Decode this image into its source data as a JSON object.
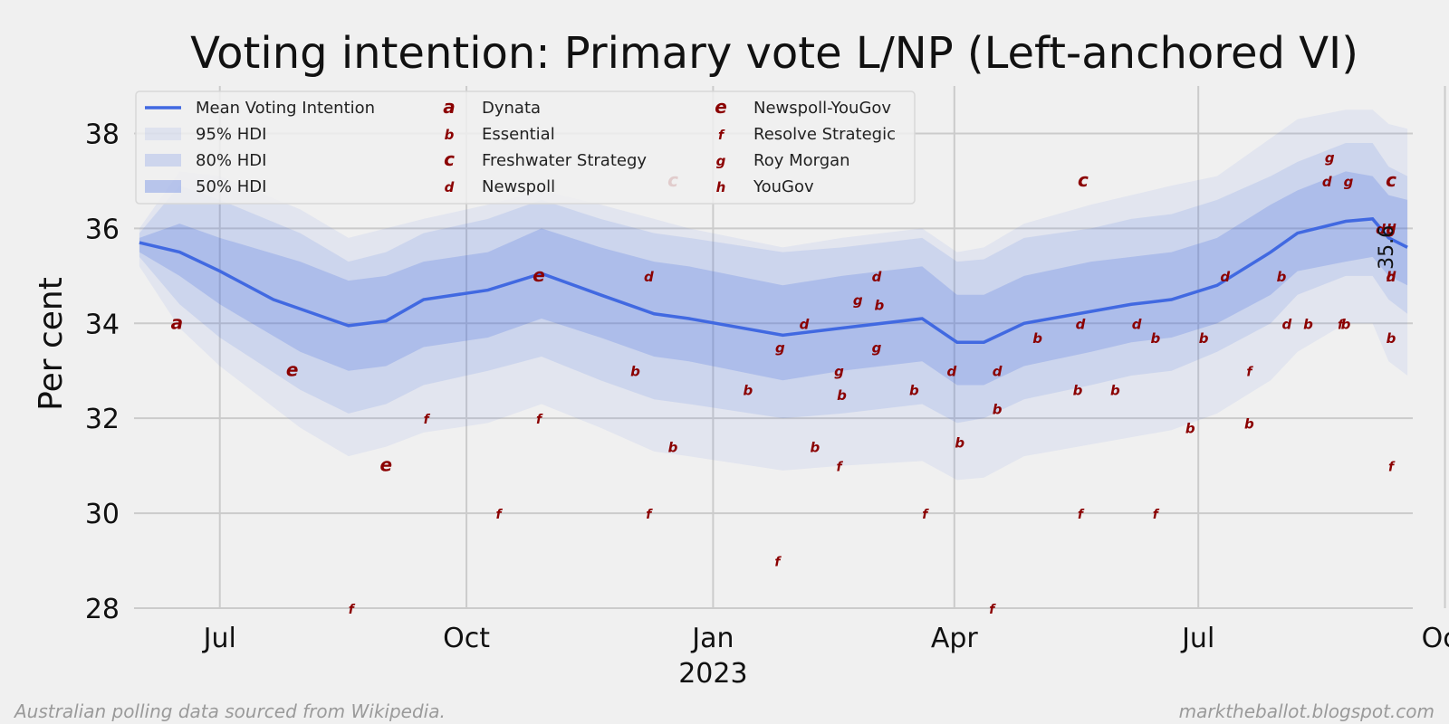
{
  "footer": {
    "left": "Australian polling data sourced from Wikipedia.",
    "right": "marktheballot.blogspot.com"
  },
  "chart_data": {
    "type": "line",
    "title": "Voting intention: Primary vote L/NP (Left-anchored VI)",
    "xlabel": "",
    "ylabel": "Per cent",
    "ylim": [
      28,
      39
    ],
    "xlim_days": [
      -32,
      445
    ],
    "x_unit": "days since 2022-07-01",
    "yticks": [
      28,
      30,
      32,
      34,
      36,
      38
    ],
    "xticks": [
      {
        "day": 0,
        "label": "Jul"
      },
      {
        "day": 92,
        "label": "Oct"
      },
      {
        "day": 184,
        "label": "Jan"
      },
      {
        "day": 274,
        "label": "Apr"
      },
      {
        "day": 365,
        "label": "Jul"
      },
      {
        "day": 457,
        "label": "Oct"
      }
    ],
    "year_label": {
      "day": 184,
      "label": "2023"
    },
    "end_label": "35.6",
    "legend": {
      "placement": "upper-left",
      "entries": [
        {
          "kind": "line",
          "label": "Mean Voting Intention"
        },
        {
          "kind": "band",
          "label": "95% HDI"
        },
        {
          "kind": "band",
          "label": "80% HDI"
        },
        {
          "kind": "band",
          "label": "50% HDI"
        },
        {
          "kind": "marker",
          "marker": "a",
          "label": "Dynata"
        },
        {
          "kind": "marker",
          "marker": "b",
          "label": "Essential"
        },
        {
          "kind": "marker",
          "marker": "c",
          "label": "Freshwater Strategy"
        },
        {
          "kind": "marker",
          "marker": "d",
          "label": "Newspoll"
        },
        {
          "kind": "marker",
          "marker": "e",
          "label": "Newspoll-YouGov"
        },
        {
          "kind": "marker",
          "marker": "f",
          "label": "Resolve Strategic"
        },
        {
          "kind": "marker",
          "marker": "g",
          "label": "Roy Morgan"
        },
        {
          "kind": "marker",
          "marker": "h",
          "label": "YouGov"
        }
      ]
    },
    "series": [
      {
        "name": "Mean Voting Intention",
        "color": "#4169e1",
        "x": [
          -40,
          -15,
          0,
          20,
          48,
          62,
          76,
          100,
          120,
          142,
          162,
          175,
          210,
          232,
          262,
          275,
          285,
          300,
          325,
          340,
          355,
          372,
          392,
          402,
          420,
          430,
          436,
          445,
          457,
          475
        ],
        "y": [
          35.7,
          35.5,
          35.1,
          34.5,
          33.95,
          34.05,
          34.5,
          34.7,
          35.05,
          34.6,
          34.2,
          34.1,
          33.75,
          33.9,
          34.1,
          33.6,
          33.6,
          34.0,
          34.25,
          34.4,
          34.5,
          34.8,
          35.5,
          35.9,
          36.15,
          36.2,
          35.8,
          35.6,
          35.6,
          35.6
        ]
      }
    ],
    "bands": [
      {
        "name": "95% HDI",
        "color": "#4169e1",
        "opacity": 0.08,
        "x": [
          -40,
          -15,
          0,
          30,
          48,
          62,
          76,
          100,
          120,
          142,
          162,
          175,
          210,
          232,
          262,
          275,
          285,
          300,
          325,
          340,
          355,
          372,
          392,
          402,
          420,
          430,
          436,
          445,
          457,
          475
        ],
        "lower": [
          35.2,
          33.9,
          33.1,
          31.8,
          31.2,
          31.4,
          31.7,
          31.9,
          32.3,
          31.8,
          31.3,
          31.2,
          30.9,
          31.0,
          31.1,
          30.7,
          30.75,
          31.2,
          31.45,
          31.6,
          31.75,
          32.1,
          32.8,
          33.4,
          34.0,
          34.0,
          33.2,
          32.9,
          32.8,
          32.6
        ],
        "upper": [
          36.0,
          37.2,
          37.1,
          36.4,
          35.8,
          36.0,
          36.2,
          36.5,
          36.8,
          36.5,
          36.2,
          36.0,
          35.6,
          35.8,
          36.0,
          35.5,
          35.6,
          36.1,
          36.5,
          36.7,
          36.9,
          37.1,
          37.9,
          38.3,
          38.5,
          38.5,
          38.2,
          38.1,
          38.2,
          38.6
        ]
      },
      {
        "name": "80% HDI",
        "color": "#4169e1",
        "opacity": 0.13,
        "x": [
          -40,
          -15,
          0,
          30,
          48,
          62,
          76,
          100,
          120,
          142,
          162,
          175,
          210,
          232,
          262,
          275,
          285,
          300,
          325,
          340,
          355,
          372,
          392,
          402,
          420,
          430,
          436,
          445,
          457,
          475
        ],
        "lower": [
          35.4,
          34.4,
          33.7,
          32.6,
          32.1,
          32.3,
          32.7,
          33.0,
          33.3,
          32.8,
          32.4,
          32.3,
          32.0,
          32.1,
          32.3,
          31.9,
          32.0,
          32.4,
          32.7,
          32.9,
          33.0,
          33.4,
          34.0,
          34.6,
          35.0,
          35.0,
          34.5,
          34.2,
          34.1,
          33.9
        ],
        "upper": [
          35.9,
          36.9,
          36.6,
          35.9,
          35.3,
          35.5,
          35.9,
          36.2,
          36.6,
          36.2,
          35.9,
          35.8,
          35.5,
          35.6,
          35.8,
          35.3,
          35.35,
          35.8,
          36.0,
          36.2,
          36.3,
          36.6,
          37.1,
          37.4,
          37.8,
          37.8,
          37.3,
          37.1,
          37.2,
          37.5
        ]
      },
      {
        "name": "50% HDI",
        "color": "#4169e1",
        "opacity": 0.22,
        "x": [
          -40,
          -15,
          0,
          30,
          48,
          62,
          76,
          100,
          120,
          142,
          162,
          175,
          210,
          232,
          262,
          275,
          285,
          300,
          325,
          340,
          355,
          372,
          392,
          402,
          420,
          430,
          436,
          445,
          457,
          475
        ],
        "lower": [
          35.5,
          35.0,
          34.4,
          33.4,
          33.0,
          33.1,
          33.5,
          33.7,
          34.1,
          33.7,
          33.3,
          33.2,
          32.8,
          33.0,
          33.2,
          32.7,
          32.7,
          33.1,
          33.4,
          33.6,
          33.7,
          34.0,
          34.6,
          35.1,
          35.3,
          35.4,
          35.0,
          34.8,
          34.7,
          34.6
        ],
        "upper": [
          35.8,
          36.1,
          35.8,
          35.3,
          34.9,
          35.0,
          35.3,
          35.5,
          36.0,
          35.6,
          35.3,
          35.2,
          34.8,
          35.0,
          35.2,
          34.6,
          34.6,
          35.0,
          35.3,
          35.4,
          35.5,
          35.8,
          36.5,
          36.8,
          37.2,
          37.1,
          36.7,
          36.6,
          36.6,
          36.7
        ]
      }
    ],
    "polls": [
      {
        "m": "a",
        "x": -16,
        "y": 34
      },
      {
        "m": "e",
        "x": 27,
        "y": 33
      },
      {
        "m": "e",
        "x": 62,
        "y": 31
      },
      {
        "m": "e",
        "x": 119,
        "y": 35
      },
      {
        "m": "f",
        "x": 49,
        "y": 28
      },
      {
        "m": "f",
        "x": 77,
        "y": 32
      },
      {
        "m": "f",
        "x": 104,
        "y": 30
      },
      {
        "m": "f",
        "x": 119,
        "y": 32
      },
      {
        "m": "f",
        "x": 160,
        "y": 30
      },
      {
        "m": "f",
        "x": 208,
        "y": 29
      },
      {
        "m": "f",
        "x": 231,
        "y": 31
      },
      {
        "m": "f",
        "x": 263,
        "y": 30
      },
      {
        "m": "f",
        "x": 288,
        "y": 28
      },
      {
        "m": "f",
        "x": 321,
        "y": 30
      },
      {
        "m": "f",
        "x": 349,
        "y": 30
      },
      {
        "m": "f",
        "x": 384,
        "y": 33
      },
      {
        "m": "f",
        "x": 418,
        "y": 34
      },
      {
        "m": "f",
        "x": 454,
        "y": 31
      },
      {
        "m": "c",
        "x": 169,
        "y": 37
      },
      {
        "m": "c",
        "x": 322,
        "y": 37
      },
      {
        "m": "c",
        "x": 439,
        "y": 37
      },
      {
        "m": "d",
        "x": 160,
        "y": 35
      },
      {
        "m": "d",
        "x": 218,
        "y": 34
      },
      {
        "m": "d",
        "x": 245,
        "y": 35
      },
      {
        "m": "d",
        "x": 273,
        "y": 33
      },
      {
        "m": "d",
        "x": 290,
        "y": 33
      },
      {
        "m": "d",
        "x": 321,
        "y": 34
      },
      {
        "m": "d",
        "x": 342,
        "y": 34
      },
      {
        "m": "d",
        "x": 375,
        "y": 35
      },
      {
        "m": "d",
        "x": 398,
        "y": 34
      },
      {
        "m": "d",
        "x": 413,
        "y": 37
      },
      {
        "m": "d",
        "x": 433,
        "y": 36
      },
      {
        "m": "d",
        "x": 452,
        "y": 36
      },
      {
        "m": "d",
        "x": 467,
        "y": 35
      },
      {
        "m": "g",
        "x": 209,
        "y": 33.5
      },
      {
        "m": "g",
        "x": 231,
        "y": 33
      },
      {
        "m": "g",
        "x": 238,
        "y": 34.5
      },
      {
        "m": "g",
        "x": 245,
        "y": 33.5
      },
      {
        "m": "g",
        "x": 414,
        "y": 37.5
      },
      {
        "m": "g",
        "x": 421,
        "y": 37
      },
      {
        "m": "g",
        "x": 474,
        "y": 36
      },
      {
        "m": "h",
        "x": 459,
        "y": 36
      },
      {
        "m": "h",
        "x": 456,
        "y": 35
      },
      {
        "m": "b",
        "x": 155,
        "y": 33
      },
      {
        "m": "b",
        "x": 169,
        "y": 31.4
      },
      {
        "m": "b",
        "x": 197,
        "y": 32.6
      },
      {
        "m": "b",
        "x": 222,
        "y": 31.4
      },
      {
        "m": "b",
        "x": 232,
        "y": 32.5
      },
      {
        "m": "b",
        "x": 246,
        "y": 34.4
      },
      {
        "m": "b",
        "x": 259,
        "y": 32.6
      },
      {
        "m": "b",
        "x": 276,
        "y": 31.5
      },
      {
        "m": "b",
        "x": 290,
        "y": 32.2
      },
      {
        "m": "b",
        "x": 305,
        "y": 33.7
      },
      {
        "m": "b",
        "x": 320,
        "y": 32.6
      },
      {
        "m": "b",
        "x": 334,
        "y": 32.6
      },
      {
        "m": "b",
        "x": 349,
        "y": 33.7
      },
      {
        "m": "b",
        "x": 362,
        "y": 31.8
      },
      {
        "m": "b",
        "x": 367,
        "y": 33.7
      },
      {
        "m": "b",
        "x": 384,
        "y": 31.9
      },
      {
        "m": "b",
        "x": 396,
        "y": 35
      },
      {
        "m": "b",
        "x": 406,
        "y": 34
      },
      {
        "m": "b",
        "x": 420,
        "y": 34
      },
      {
        "m": "b",
        "x": 440,
        "y": 33.7
      }
    ]
  }
}
